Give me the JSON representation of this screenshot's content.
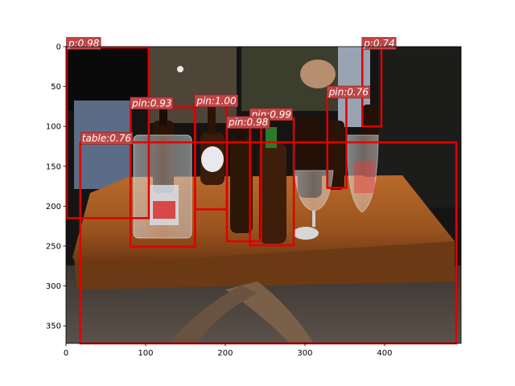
{
  "figure": {
    "scene": "beer bottles and glasses on a wooden table at night",
    "xlim": [
      0,
      496
    ],
    "ylim": [
      372,
      0
    ],
    "x_ticks": [
      "0",
      "100",
      "200",
      "300",
      "400"
    ],
    "y_ticks": [
      "0",
      "50",
      "100",
      "150",
      "200",
      "250",
      "300",
      "350"
    ],
    "box_color": "#e00000",
    "label_bg": "#c04545"
  },
  "detections": [
    {
      "label": "p:0.98",
      "x1": 1,
      "y1": 1,
      "x2": 104,
      "y2": 215
    },
    {
      "label": "p:0.74",
      "x1": 372,
      "y1": 1,
      "x2": 396,
      "y2": 100
    },
    {
      "label": "pin:0.93",
      "x1": 81,
      "y1": 76,
      "x2": 162,
      "y2": 251
    },
    {
      "label": "pin:1.00",
      "x1": 162,
      "y1": 73,
      "x2": 202,
      "y2": 204
    },
    {
      "label": "pin:0.99",
      "x1": 231,
      "y1": 90,
      "x2": 286,
      "y2": 249
    },
    {
      "label": "pin:0.98",
      "x1": 202,
      "y1": 100,
      "x2": 245,
      "y2": 244
    },
    {
      "label": "pin:0.76",
      "x1": 328,
      "y1": 62,
      "x2": 352,
      "y2": 177
    },
    {
      "label": "table:0.76",
      "x1": 18,
      "y1": 120,
      "x2": 490,
      "y2": 372
    }
  ]
}
